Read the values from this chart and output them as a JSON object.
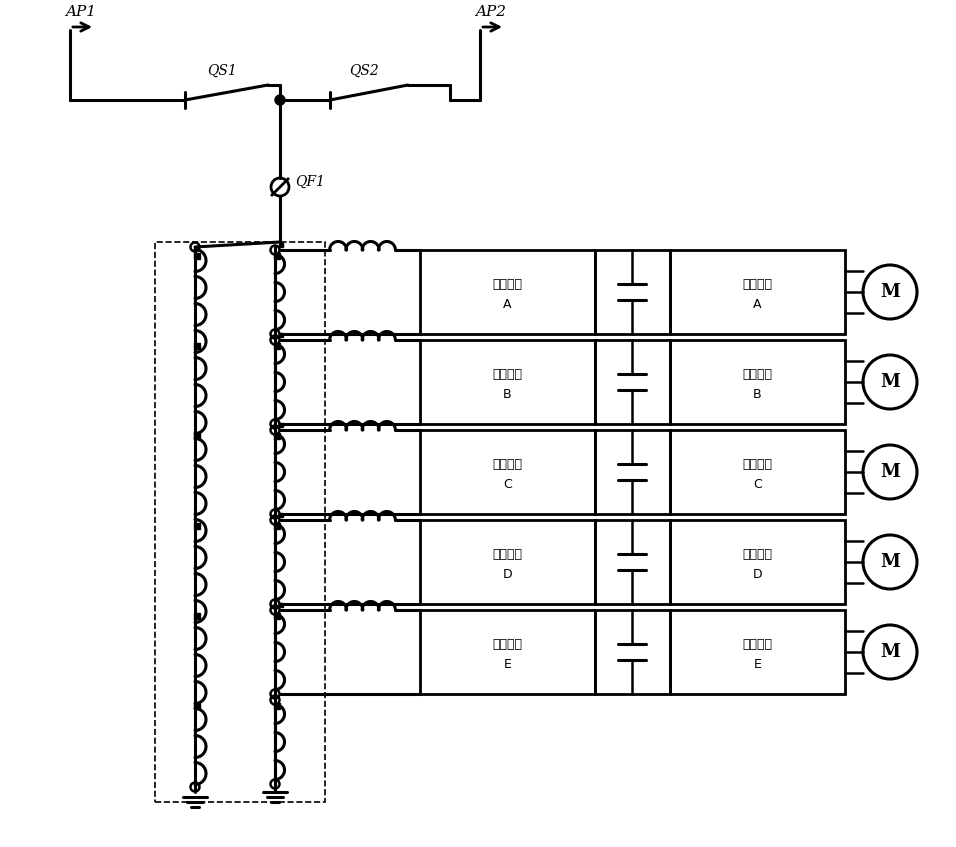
{
  "bg_color": "#ffffff",
  "line_color": "#000000",
  "unit_letters": [
    "A",
    "B",
    "C",
    "D",
    "E"
  ],
  "unit_labels_rect": [
    "整流单元",
    "整流单元",
    "整流单元",
    "整流单元",
    "整流单元"
  ],
  "unit_labels_inv": [
    "逆变单元",
    "逆变单元",
    "逆变单元",
    "逆变单元",
    "逆变单元"
  ],
  "AP1_label": "AP1",
  "AP2_label": "AP2",
  "QS1_label": "QS1",
  "QS2_label": "QS2",
  "QF1_label": "QF1",
  "n_units": 5,
  "n_sec_total": 6,
  "primary_bumps": 20,
  "secondary_bumps": 3,
  "inductor_bumps": 4,
  "font_size_label": 9,
  "font_size_switch": 10,
  "font_size_motor": 13
}
